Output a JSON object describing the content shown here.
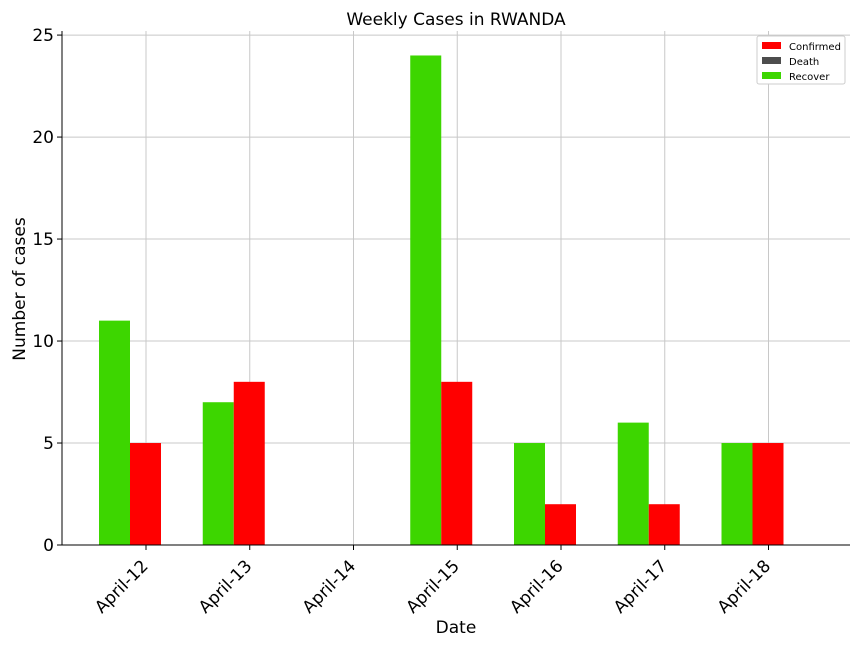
{
  "chart_data": {
    "type": "bar",
    "title": "Weekly Cases in RWANDA",
    "xlabel": "Date",
    "ylabel": "Number of cases",
    "categories": [
      "April-12",
      "April-13",
      "April-14",
      "April-15",
      "April-16",
      "April-17",
      "April-18"
    ],
    "series": [
      {
        "name": "Confirmed",
        "color": "#ff0000",
        "values": [
          5,
          8,
          0,
          8,
          2,
          2,
          5
        ]
      },
      {
        "name": "Death",
        "color": "#4d4d4d",
        "values": [
          0,
          0,
          0,
          0,
          0,
          0,
          0
        ]
      },
      {
        "name": "Recover",
        "color": "#3dd600",
        "values": [
          11,
          7,
          0,
          24,
          5,
          6,
          5
        ]
      }
    ],
    "ylim": [
      0,
      25.2
    ],
    "yticks": [
      0,
      5,
      10,
      15,
      20,
      25
    ],
    "grid": true,
    "legend_position": "top-right"
  }
}
